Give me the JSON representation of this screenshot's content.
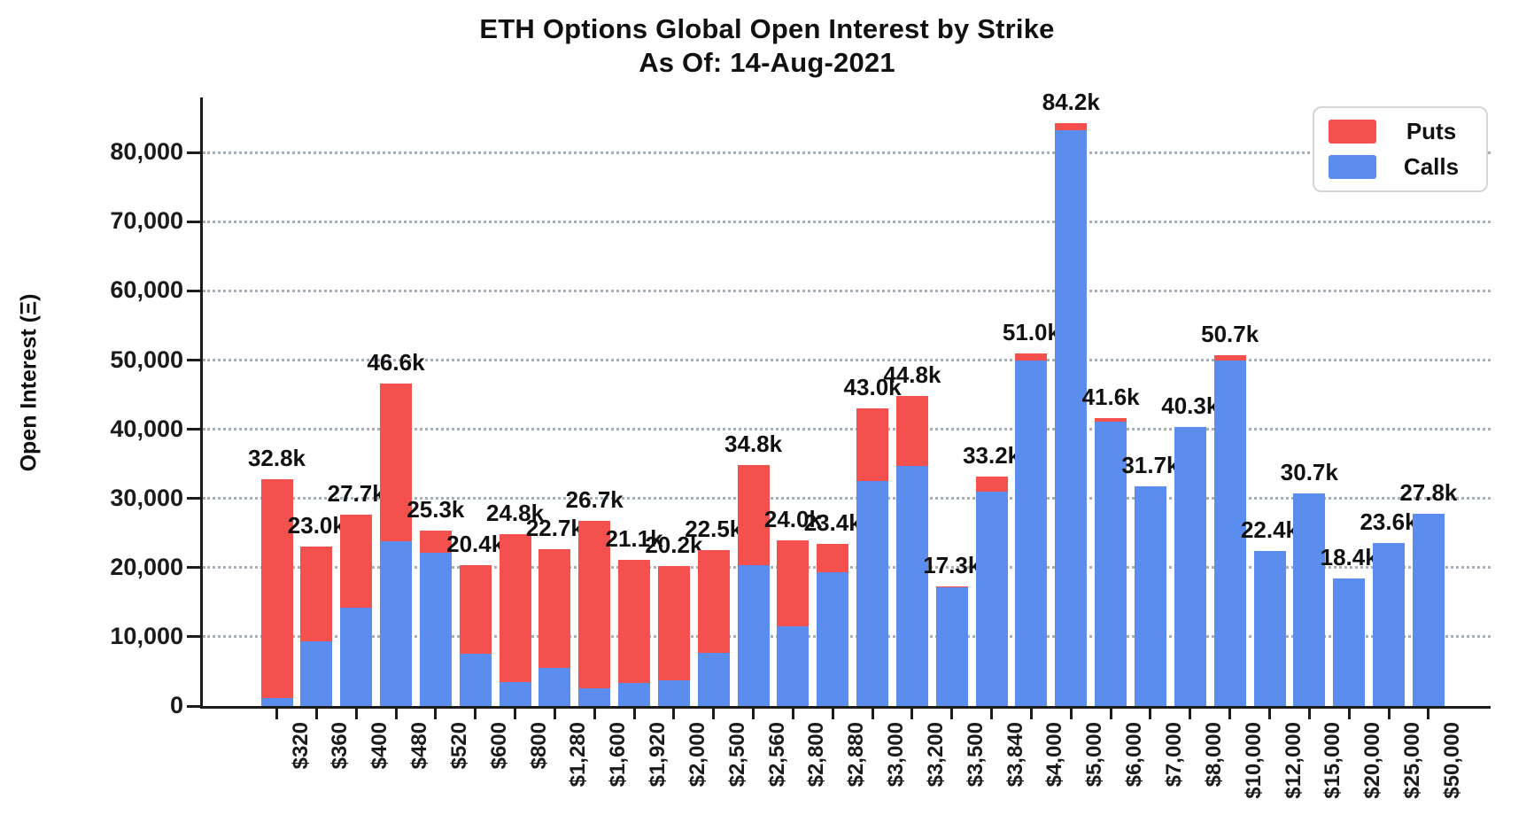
{
  "title": {
    "line1": "ETH Options Global Open Interest by Strike",
    "line2": "As Of: 14-Aug-2021"
  },
  "y_axis": {
    "label": "Open Interest (Ξ)",
    "tick_values": [
      0,
      10000,
      20000,
      30000,
      40000,
      50000,
      60000,
      70000,
      80000
    ],
    "tick_labels": [
      "0",
      "10,000",
      "20,000",
      "30,000",
      "40,000",
      "50,000",
      "60,000",
      "70,000",
      "80,000"
    ]
  },
  "legend": {
    "items": [
      {
        "label": "Puts",
        "color": "#F4504D"
      },
      {
        "label": "Calls",
        "color": "#5B8DEE"
      }
    ]
  },
  "colors": {
    "puts": "#F4504D",
    "calls": "#5B8DEE",
    "gridline": "#9aa2aa",
    "axis": "#1b1b1b",
    "text": "#111111"
  },
  "chart_data": {
    "type": "bar",
    "stacked": true,
    "title": "ETH Options Global Open Interest by Strike",
    "subtitle": "As Of: 14-Aug-2021",
    "xlabel": "",
    "ylabel": "Open Interest (Ξ)",
    "ylim": [
      0,
      88000
    ],
    "grid": "horizontal-dotted",
    "legend_position": "top-right",
    "categories": [
      "$320",
      "$360",
      "$400",
      "$480",
      "$520",
      "$600",
      "$800",
      "$1,280",
      "$1,600",
      "$1,920",
      "$2,000",
      "$2,500",
      "$2,560",
      "$2,800",
      "$2,880",
      "$3,000",
      "$3,200",
      "$3,500",
      "$3,840",
      "$4,000",
      "$5,000",
      "$6,000",
      "$7,000",
      "$8,000",
      "$10,000",
      "$12,000",
      "$15,000",
      "$20,000",
      "$25,000",
      "$50,000"
    ],
    "series": [
      {
        "name": "Calls",
        "color": "#5B8DEE",
        "values_k": [
          1.2,
          9.4,
          14.2,
          23.8,
          22.1,
          7.6,
          3.5,
          5.5,
          2.6,
          3.3,
          3.7,
          7.7,
          20.4,
          11.5,
          19.4,
          32.5,
          34.7,
          17.1,
          31.0,
          49.9,
          83.2,
          41.1,
          31.7,
          40.3,
          50.0,
          22.4,
          30.7,
          18.4,
          23.6,
          27.8
        ]
      },
      {
        "name": "Puts",
        "color": "#F4504D",
        "values_k": [
          31.6,
          13.6,
          13.5,
          22.8,
          3.2,
          12.8,
          21.3,
          17.2,
          24.1,
          17.8,
          16.5,
          14.8,
          14.4,
          12.5,
          4.0,
          10.5,
          10.1,
          0.2,
          2.2,
          1.1,
          1.0,
          0.5,
          0.0,
          0.0,
          0.7,
          0.0,
          0.0,
          0.0,
          0.0,
          0.0
        ]
      }
    ],
    "total_labels": [
      "32.8k",
      "23.0k",
      "27.7k",
      "46.6k",
      "25.3k",
      "20.4k",
      "24.8k",
      "22.7k",
      "26.7k",
      "21.1k",
      "20.2k",
      "22.5k",
      "34.8k",
      "24.0k",
      "23.4k",
      "43.0k",
      "44.8k",
      "17.3k",
      "33.2k",
      "51.0k",
      "84.2k",
      "41.6k",
      "31.7k",
      "40.3k",
      "50.7k",
      "22.4k",
      "30.7k",
      "18.4k",
      "23.6k",
      "27.8k"
    ]
  }
}
